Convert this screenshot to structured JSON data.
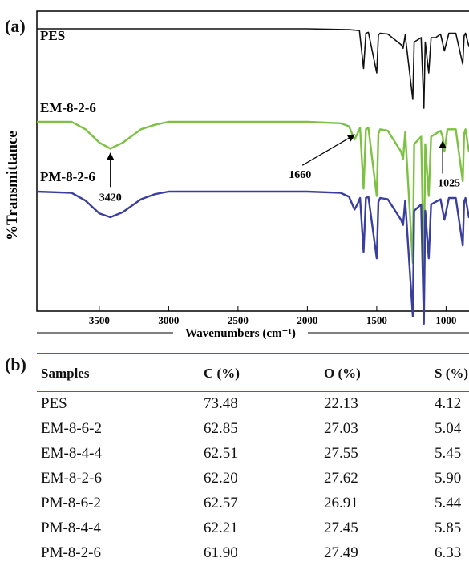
{
  "panels": {
    "a": "(a)",
    "b": "(b)"
  },
  "chart_data": {
    "type": "line",
    "xlabel": "Wavenumbers (cm⁻¹)",
    "ylabel": "%Transmittance",
    "xlim": [
      3950,
      800
    ],
    "x_reversed": true,
    "grid": false,
    "xticks": [
      3500,
      3000,
      2500,
      2000,
      1500,
      1000
    ],
    "series": [
      {
        "name": "PES",
        "color": "#111111",
        "baseline": 0.85,
        "x": [
          3950,
          2000,
          1700,
          1625,
          1595,
          1578,
          1560,
          1500,
          1488,
          1475,
          1420,
          1325,
          1310,
          1295,
          1240,
          1230,
          1180,
          1160,
          1150,
          1125,
          1108,
          1075,
          1040,
          1012,
          980,
          930,
          880,
          870,
          860,
          835,
          800
        ],
        "y": [
          1.0,
          1.0,
          0.99,
          0.98,
          0.55,
          0.95,
          0.96,
          0.5,
          0.93,
          0.95,
          0.94,
          0.82,
          0.78,
          0.93,
          0.2,
          0.85,
          0.9,
          0.1,
          0.85,
          0.5,
          0.9,
          0.9,
          0.94,
          0.75,
          0.95,
          0.95,
          0.6,
          0.92,
          0.95,
          0.8,
          0.95
        ]
      },
      {
        "name": "EM-8-2-6",
        "color": "#7dc142",
        "baseline": 0.55,
        "x": [
          3950,
          3700,
          3600,
          3500,
          3420,
          3330,
          3200,
          3100,
          3000,
          2800,
          2000,
          1760,
          1700,
          1660,
          1640,
          1620,
          1595,
          1578,
          1560,
          1500,
          1488,
          1475,
          1420,
          1325,
          1310,
          1295,
          1240,
          1230,
          1180,
          1160,
          1150,
          1125,
          1108,
          1075,
          1040,
          1025,
          1012,
          990,
          930,
          880,
          870,
          860,
          835,
          800
        ],
        "y": [
          1.0,
          1.0,
          0.95,
          0.86,
          0.82,
          0.86,
          0.95,
          0.98,
          1.0,
          1.0,
          1.0,
          0.99,
          0.97,
          0.88,
          0.92,
          0.96,
          0.55,
          0.95,
          0.96,
          0.5,
          0.92,
          0.95,
          0.94,
          0.8,
          0.75,
          0.93,
          0.05,
          0.85,
          0.9,
          0.0,
          0.85,
          0.5,
          0.9,
          0.92,
          0.94,
          0.9,
          0.8,
          0.95,
          0.95,
          0.6,
          0.92,
          0.95,
          0.8,
          0.95
        ]
      },
      {
        "name": "PM-8-2-6",
        "color": "#3a3f9e",
        "baseline": 0.25,
        "x": [
          3950,
          3700,
          3600,
          3500,
          3420,
          3330,
          3200,
          3100,
          3000,
          2800,
          2000,
          1760,
          1700,
          1660,
          1640,
          1620,
          1595,
          1578,
          1560,
          1500,
          1488,
          1475,
          1420,
          1325,
          1310,
          1295,
          1240,
          1230,
          1180,
          1160,
          1150,
          1125,
          1108,
          1075,
          1040,
          1012,
          980,
          930,
          880,
          870,
          860,
          835,
          800
        ],
        "y": [
          1.0,
          0.99,
          0.93,
          0.83,
          0.8,
          0.84,
          0.94,
          0.98,
          1.0,
          1.0,
          1.0,
          0.99,
          0.96,
          0.86,
          0.9,
          0.95,
          0.53,
          0.95,
          0.96,
          0.48,
          0.92,
          0.95,
          0.94,
          0.78,
          0.74,
          0.93,
          0.03,
          0.85,
          0.9,
          -0.03,
          0.85,
          0.48,
          0.9,
          0.92,
          0.94,
          0.78,
          0.95,
          0.95,
          0.58,
          0.92,
          0.95,
          0.8,
          0.95
        ]
      }
    ],
    "annotations": [
      {
        "text": "3420",
        "series": 1,
        "x": 3420
      },
      {
        "text": "1660",
        "series": 1,
        "x": 1660
      },
      {
        "text": "1025",
        "series": 1,
        "x": 1025
      }
    ]
  },
  "table": {
    "headers": [
      "Samples",
      "C (%)",
      "O (%)",
      "S (%)"
    ],
    "rows": [
      [
        "PES",
        "73.48",
        "22.13",
        "4.12"
      ],
      [
        "EM-8-6-2",
        "62.85",
        "27.03",
        "5.04"
      ],
      [
        "EM-8-4-4",
        "62.51",
        "27.55",
        "5.45"
      ],
      [
        "EM-8-2-6",
        "62.20",
        "27.62",
        "5.90"
      ],
      [
        "PM-8-6-2",
        "62.57",
        "26.91",
        "5.44"
      ],
      [
        "PM-8-4-4",
        "62.21",
        "27.45",
        "5.85"
      ],
      [
        "PM-8-2-6",
        "61.90",
        "27.49",
        "6.33"
      ]
    ]
  }
}
